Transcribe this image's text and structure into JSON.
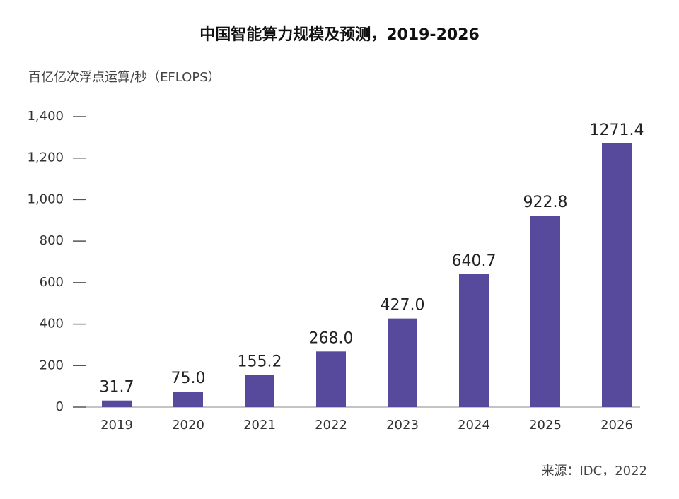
{
  "chart_data": {
    "type": "bar",
    "title": "中国智能算力规模及预测，2019-2026",
    "y_axis_label": "百亿亿次浮点运算/秒（EFLOPS）",
    "source": "来源：IDC，2022",
    "categories": [
      "2019",
      "2020",
      "2021",
      "2022",
      "2023",
      "2024",
      "2025",
      "2026"
    ],
    "values": [
      31.7,
      75.0,
      155.2,
      268.0,
      427.0,
      640.7,
      922.8,
      1271.4
    ],
    "value_labels": [
      "31.7",
      "75.0",
      "155.2",
      "268.0",
      "427.0",
      "640.7",
      "922.8",
      "1271.4"
    ],
    "color": "#574a9d",
    "ylim": [
      0,
      1400
    ],
    "yticks": [
      0,
      200,
      400,
      600,
      800,
      {
        "value": 1000,
        "label": "1,000"
      },
      {
        "value": 1200,
        "label": "1,200"
      },
      {
        "value": 1400,
        "label": "1,400"
      }
    ],
    "grid": false
  }
}
